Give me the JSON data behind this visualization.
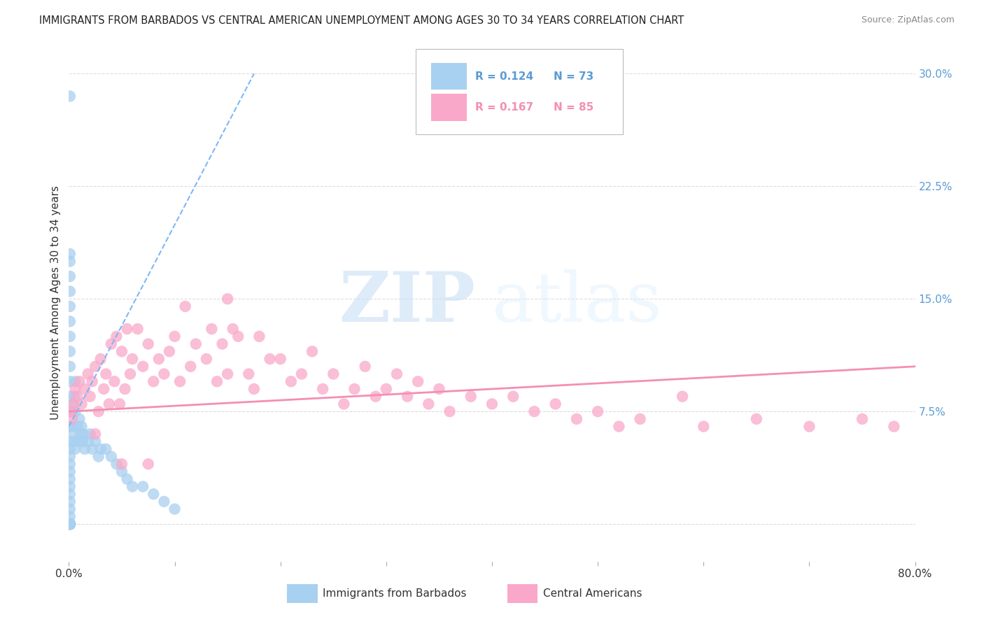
{
  "title": "IMMIGRANTS FROM BARBADOS VS CENTRAL AMERICAN UNEMPLOYMENT AMONG AGES 30 TO 34 YEARS CORRELATION CHART",
  "source": "Source: ZipAtlas.com",
  "ylabel": "Unemployment Among Ages 30 to 34 years",
  "xlim": [
    0.0,
    0.8
  ],
  "ylim": [
    -0.025,
    0.32
  ],
  "y_ticks_right": [
    0.0,
    0.075,
    0.15,
    0.225,
    0.3
  ],
  "y_tick_labels_right": [
    "",
    "7.5%",
    "15.0%",
    "22.5%",
    "30.0%"
  ],
  "color_blue": "#a8d0f0",
  "color_pink": "#f9a8c9",
  "color_blue_line": "#7eb8f7",
  "color_pink_line": "#f48fb1",
  "legend_label1": "Immigrants from Barbados",
  "legend_label2": "Central Americans",
  "watermark_zip": "ZIP",
  "watermark_atlas": "atlas",
  "grid_color": "#dddddd",
  "background_color": "#ffffff",
  "barbados_x": [
    0.001,
    0.001,
    0.001,
    0.001,
    0.001,
    0.001,
    0.001,
    0.001,
    0.001,
    0.001,
    0.001,
    0.001,
    0.001,
    0.001,
    0.001,
    0.001,
    0.001,
    0.001,
    0.001,
    0.001,
    0.001,
    0.001,
    0.001,
    0.001,
    0.001,
    0.001,
    0.001,
    0.001,
    0.001,
    0.001,
    0.001,
    0.001,
    0.001,
    0.001,
    0.001,
    0.001,
    0.001,
    0.001,
    0.001,
    0.001,
    0.003,
    0.003,
    0.004,
    0.004,
    0.005,
    0.005,
    0.006,
    0.006,
    0.008,
    0.009,
    0.01,
    0.011,
    0.012,
    0.013,
    0.014,
    0.015,
    0.018,
    0.02,
    0.022,
    0.025,
    0.028,
    0.03,
    0.035,
    0.04,
    0.045,
    0.05,
    0.055,
    0.06,
    0.07,
    0.08,
    0.09,
    0.1,
    0.006
  ],
  "barbados_y": [
    0.285,
    0.18,
    0.175,
    0.165,
    0.155,
    0.145,
    0.135,
    0.125,
    0.115,
    0.105,
    0.095,
    0.085,
    0.075,
    0.065,
    0.055,
    0.05,
    0.045,
    0.04,
    0.035,
    0.03,
    0.025,
    0.02,
    0.015,
    0.01,
    0.005,
    0.0,
    0.0,
    0.0,
    0.0,
    0.0,
    0.0,
    0.0,
    0.0,
    0.0,
    0.0,
    0.0,
    0.0,
    0.0,
    0.0,
    0.0,
    0.075,
    0.065,
    0.08,
    0.06,
    0.085,
    0.055,
    0.075,
    0.05,
    0.065,
    0.055,
    0.07,
    0.06,
    0.065,
    0.055,
    0.06,
    0.05,
    0.055,
    0.06,
    0.05,
    0.055,
    0.045,
    0.05,
    0.05,
    0.045,
    0.04,
    0.035,
    0.03,
    0.025,
    0.025,
    0.02,
    0.015,
    0.01,
    0.095
  ],
  "central_x": [
    0.002,
    0.003,
    0.004,
    0.006,
    0.008,
    0.01,
    0.012,
    0.015,
    0.018,
    0.02,
    0.022,
    0.025,
    0.028,
    0.03,
    0.033,
    0.035,
    0.038,
    0.04,
    0.043,
    0.045,
    0.048,
    0.05,
    0.053,
    0.055,
    0.058,
    0.06,
    0.065,
    0.07,
    0.075,
    0.08,
    0.085,
    0.09,
    0.095,
    0.1,
    0.105,
    0.11,
    0.115,
    0.12,
    0.13,
    0.135,
    0.14,
    0.145,
    0.15,
    0.155,
    0.16,
    0.17,
    0.175,
    0.18,
    0.19,
    0.2,
    0.21,
    0.22,
    0.23,
    0.24,
    0.25,
    0.26,
    0.27,
    0.28,
    0.29,
    0.3,
    0.31,
    0.32,
    0.33,
    0.34,
    0.35,
    0.36,
    0.38,
    0.4,
    0.42,
    0.44,
    0.46,
    0.48,
    0.5,
    0.52,
    0.54,
    0.58,
    0.6,
    0.65,
    0.7,
    0.75,
    0.78,
    0.025,
    0.05,
    0.075,
    0.15
  ],
  "central_y": [
    0.075,
    0.07,
    0.08,
    0.09,
    0.085,
    0.095,
    0.08,
    0.09,
    0.1,
    0.085,
    0.095,
    0.105,
    0.075,
    0.11,
    0.09,
    0.1,
    0.08,
    0.12,
    0.095,
    0.125,
    0.08,
    0.115,
    0.09,
    0.13,
    0.1,
    0.11,
    0.13,
    0.105,
    0.12,
    0.095,
    0.11,
    0.1,
    0.115,
    0.125,
    0.095,
    0.145,
    0.105,
    0.12,
    0.11,
    0.13,
    0.095,
    0.12,
    0.1,
    0.13,
    0.125,
    0.1,
    0.09,
    0.125,
    0.11,
    0.11,
    0.095,
    0.1,
    0.115,
    0.09,
    0.1,
    0.08,
    0.09,
    0.105,
    0.085,
    0.09,
    0.1,
    0.085,
    0.095,
    0.08,
    0.09,
    0.075,
    0.085,
    0.08,
    0.085,
    0.075,
    0.08,
    0.07,
    0.075,
    0.065,
    0.07,
    0.085,
    0.065,
    0.07,
    0.065,
    0.07,
    0.065,
    0.06,
    0.04,
    0.04,
    0.15
  ]
}
